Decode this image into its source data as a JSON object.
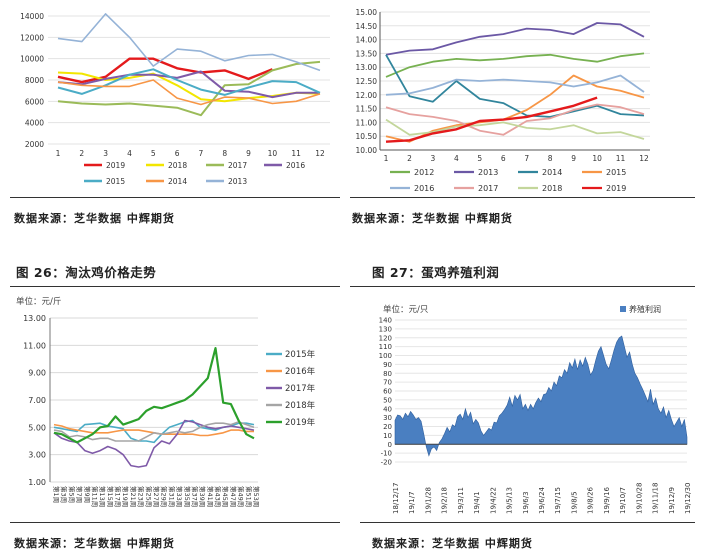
{
  "captions": {
    "source_tl": "数据来源：芝华数据   中辉期货",
    "source_tr": "数据来源：芝华数据   中辉期货",
    "fig26": "图 26：淘汰鸡价格走势",
    "fig27": "图 27：蛋鸡养殖利润",
    "source_bl": "数据来源：芝华数据   中辉期货",
    "source_br": "数据来源：芝华数据   中辉期货"
  },
  "chart_data": [
    {
      "type": "line",
      "title": "",
      "xlabel": "",
      "ylabel": "",
      "x": [
        1,
        2,
        3,
        4,
        5,
        6,
        7,
        8,
        9,
        10,
        11,
        12
      ],
      "ylim": [
        2000,
        14000
      ],
      "yticks": [
        2000,
        4000,
        6000,
        8000,
        10000,
        12000,
        14000
      ],
      "legend": "bottom",
      "series": [
        {
          "name": "2019",
          "color": "#e41a1c",
          "width": 2.4,
          "values": [
            8300,
            7800,
            8300,
            10000,
            10000,
            9100,
            8700,
            8900,
            8100,
            9000,
            null,
            null
          ]
        },
        {
          "name": "2018",
          "color": "#f2e600",
          "width": 2,
          "values": [
            8700,
            8600,
            8000,
            8200,
            8600,
            7500,
            6200,
            6000,
            6300,
            6500,
            6800,
            6700
          ]
        },
        {
          "name": "2017",
          "color": "#9bbb59",
          "width": 2,
          "values": [
            6000,
            5800,
            5700,
            5800,
            5600,
            5400,
            4700,
            7500,
            7600,
            8900,
            9500,
            9700
          ]
        },
        {
          "name": "2016",
          "color": "#7f5aa8",
          "width": 2,
          "values": [
            7800,
            7600,
            8100,
            8500,
            8500,
            8200,
            8800,
            7000,
            6900,
            6400,
            6800,
            6800
          ]
        },
        {
          "name": "2015",
          "color": "#4bacc6",
          "width": 2,
          "values": [
            7300,
            6700,
            7500,
            8500,
            9000,
            8000,
            7100,
            6600,
            7300,
            7900,
            7800,
            6800
          ]
        },
        {
          "name": "2014",
          "color": "#f79646",
          "width": 1.6,
          "values": [
            7800,
            7500,
            7400,
            7400,
            8000,
            6300,
            5700,
            6400,
            6300,
            5800,
            6000,
            6700
          ]
        },
        {
          "name": "2013",
          "color": "#95b3d7",
          "width": 1.6,
          "values": [
            11900,
            11600,
            14200,
            12000,
            9300,
            10900,
            10700,
            9800,
            10300,
            10400,
            9700,
            8900
          ]
        }
      ]
    },
    {
      "type": "line",
      "title": "",
      "xlabel": "",
      "ylabel": "",
      "x": [
        1,
        2,
        3,
        4,
        5,
        6,
        7,
        8,
        9,
        10,
        11,
        12
      ],
      "ylim": [
        10.0,
        15.0
      ],
      "yticks": [
        10.0,
        10.5,
        11.0,
        11.5,
        12.0,
        12.5,
        13.0,
        13.5,
        14.0,
        14.5,
        15.0
      ],
      "legend": "bottom",
      "series": [
        {
          "name": "2012",
          "color": "#77b151",
          "width": 1.8,
          "values": [
            12.65,
            13.0,
            13.2,
            13.3,
            13.25,
            13.3,
            13.4,
            13.45,
            13.3,
            13.2,
            13.4,
            13.5
          ]
        },
        {
          "name": "2013",
          "color": "#6b58a5",
          "width": 1.8,
          "values": [
            13.45,
            13.6,
            13.65,
            13.9,
            14.1,
            14.2,
            14.4,
            14.35,
            14.2,
            14.6,
            14.55,
            14.1
          ]
        },
        {
          "name": "2014",
          "color": "#31859c",
          "width": 1.8,
          "values": [
            13.45,
            11.95,
            11.75,
            12.5,
            11.85,
            11.7,
            11.25,
            11.2,
            11.4,
            11.6,
            11.3,
            11.25
          ]
        },
        {
          "name": "2015",
          "color": "#f79646",
          "width": 1.8,
          "values": [
            10.5,
            10.3,
            10.7,
            10.9,
            11.0,
            11.1,
            11.45,
            12.0,
            12.7,
            12.3,
            12.15,
            11.9
          ]
        },
        {
          "name": "2016",
          "color": "#95b3d7",
          "width": 1.8,
          "values": [
            12.0,
            12.05,
            12.25,
            12.55,
            12.5,
            12.55,
            12.5,
            12.45,
            12.3,
            12.45,
            12.7,
            12.1
          ]
        },
        {
          "name": "2017",
          "color": "#e6a19f",
          "width": 1.8,
          "values": [
            11.55,
            11.3,
            11.2,
            11.05,
            10.7,
            10.55,
            11.05,
            11.15,
            11.45,
            11.65,
            11.55,
            11.3
          ]
        },
        {
          "name": "2018",
          "color": "#c3d69b",
          "width": 1.8,
          "values": [
            11.1,
            10.55,
            10.65,
            10.85,
            10.9,
            11.0,
            10.8,
            10.75,
            10.9,
            10.6,
            10.65,
            10.4
          ]
        },
        {
          "name": "2019",
          "color": "#e41a1c",
          "width": 2.4,
          "values": [
            10.3,
            10.35,
            10.6,
            10.75,
            11.05,
            11.1,
            11.2,
            11.4,
            11.6,
            11.9,
            null,
            null
          ]
        }
      ]
    },
    {
      "type": "line",
      "title": "",
      "unit_label": "单位：元/斤",
      "xlabel": "",
      "ylabel": "",
      "x_tick_prefix": "第",
      "x_tick_suffix": "周",
      "x": [
        1,
        3,
        5,
        7,
        9,
        11,
        13,
        15,
        17,
        19,
        21,
        23,
        25,
        27,
        29,
        31,
        33,
        35,
        37,
        39,
        41,
        43,
        45,
        47,
        49,
        51,
        53
      ],
      "ylim": [
        1.0,
        13.0
      ],
      "yticks": [
        "1.00",
        "3.00",
        "5.00",
        "7.00",
        "9.00",
        "11.00",
        "13.00"
      ],
      "legend": "right",
      "series": [
        {
          "name": "2015年",
          "color": "#4bacc6",
          "width": 1.6,
          "values": [
            5.0,
            4.9,
            4.8,
            4.7,
            5.2,
            5.25,
            5.3,
            5.1,
            5.0,
            4.9,
            4.2,
            4.0,
            4.0,
            3.9,
            4.5,
            5.0,
            5.2,
            5.4,
            5.5,
            5.0,
            4.9,
            4.8,
            5.0,
            5.1,
            5.3,
            5.3,
            5.2
          ]
        },
        {
          "name": "2016年",
          "color": "#f79646",
          "width": 1.6,
          "values": [
            5.2,
            5.1,
            4.9,
            4.8,
            4.7,
            4.6,
            4.6,
            4.6,
            4.7,
            4.8,
            4.8,
            4.8,
            4.7,
            4.6,
            4.5,
            4.5,
            4.5,
            4.5,
            4.5,
            4.4,
            4.4,
            4.5,
            4.6,
            4.8,
            4.8,
            4.7,
            4.7
          ]
        },
        {
          "name": "2017年",
          "color": "#7f5aa8",
          "width": 1.6,
          "values": [
            4.6,
            4.2,
            4.0,
            3.9,
            3.3,
            3.1,
            3.3,
            3.6,
            3.4,
            3.0,
            2.2,
            2.1,
            2.2,
            3.5,
            4.0,
            3.8,
            4.5,
            5.5,
            5.4,
            5.2,
            5.0,
            4.9,
            5.0,
            5.1,
            5.0,
            4.9,
            4.8
          ]
        },
        {
          "name": "2018年",
          "color": "#a5a5a5",
          "width": 1.6,
          "values": [
            4.8,
            4.7,
            4.3,
            4.4,
            4.3,
            4.1,
            4.2,
            4.2,
            4.0,
            4.0,
            4.0,
            4.0,
            4.3,
            4.6,
            4.5,
            4.6,
            4.7,
            4.6,
            4.7,
            5.0,
            5.2,
            5.3,
            5.3,
            5.2,
            5.4,
            5.2,
            5.0
          ]
        },
        {
          "name": "2019年",
          "color": "#2ca02c",
          "width": 2.2,
          "values": [
            4.6,
            4.5,
            4.2,
            3.9,
            4.2,
            4.5,
            5.0,
            5.1,
            5.8,
            5.2,
            5.4,
            5.6,
            6.2,
            6.5,
            6.4,
            6.6,
            6.8,
            7.0,
            7.4,
            8.0,
            8.6,
            10.8,
            6.8,
            6.7,
            5.5,
            4.5,
            4.2
          ]
        }
      ]
    },
    {
      "type": "area",
      "title": "",
      "unit_label": "单位：元/只",
      "xlabel": "",
      "ylabel": "",
      "ylim": [
        -20,
        140
      ],
      "yticks": [
        -20,
        -10,
        0,
        10,
        20,
        30,
        40,
        50,
        60,
        70,
        80,
        90,
        100,
        110,
        120,
        130,
        140
      ],
      "x_ticks": [
        "18/12/17",
        "19/1/7",
        "19/1/28",
        "19/2/18",
        "19/3/11",
        "19/4/1",
        "19/4/22",
        "19/5/13",
        "19/6/3",
        "19/6/24",
        "19/7/15",
        "19/8/5",
        "19/8/26",
        "19/9/16",
        "19/10/7",
        "19/10/28",
        "19/11/18",
        "19/12/9",
        "19/12/30"
      ],
      "legend": "top-right",
      "series": [
        {
          "name": "养殖利润",
          "color": "#4a7fc1",
          "values": [
            27,
            33,
            32,
            28,
            35,
            31,
            37,
            33,
            28,
            30,
            26,
            12,
            -3,
            -13,
            -5,
            -3,
            -7,
            2,
            6,
            12,
            19,
            14,
            22,
            20,
            31,
            34,
            28,
            40,
            30,
            36,
            23,
            28,
            24,
            15,
            10,
            14,
            18,
            16,
            25,
            24,
            32,
            35,
            39,
            44,
            53,
            43,
            55,
            50,
            56,
            40,
            45,
            38,
            45,
            40,
            47,
            52,
            48,
            56,
            57,
            64,
            60,
            70,
            66,
            77,
            75,
            84,
            80,
            92,
            86,
            96,
            84,
            95,
            88,
            98,
            90,
            78,
            83,
            95,
            105,
            110,
            100,
            90,
            85,
            95,
            106,
            115,
            120,
            122,
            110,
            98,
            104,
            90,
            80,
            75,
            68,
            62,
            55,
            48,
            62,
            45,
            52,
            40,
            35,
            42,
            30,
            38,
            28,
            20,
            25,
            30,
            20,
            28,
            8
          ]
        }
      ]
    }
  ]
}
